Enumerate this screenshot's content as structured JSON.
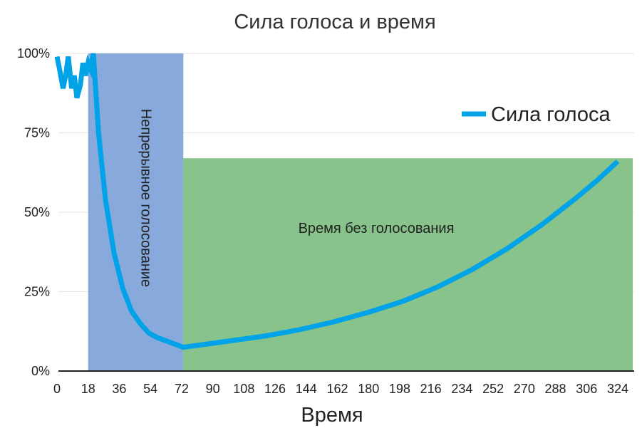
{
  "chart_data": {
    "type": "line",
    "title": "Сила голоса и время",
    "xlabel": "Время",
    "ylabel": "",
    "xlim": [
      0,
      324
    ],
    "ylim": [
      0,
      100
    ],
    "grid": true,
    "legend_position": "top-right",
    "x_ticks": [
      "0",
      "18",
      "36",
      "54",
      "72",
      "90",
      "108",
      "126",
      "144",
      "162",
      "180",
      "198",
      "216",
      "234",
      "252",
      "270",
      "288",
      "306",
      "324"
    ],
    "y_ticks": [
      "0%",
      "25%",
      "50%",
      "75%",
      "100%"
    ],
    "regions": [
      {
        "label": "Непрерывное голосование",
        "x_start": 18,
        "x_end": 73,
        "y_top": 100,
        "color": "#87a9dc"
      },
      {
        "label": "Время без голосования",
        "x_start": 73,
        "x_end": 324,
        "y_top": 67,
        "color": "#87c38a"
      }
    ],
    "series": [
      {
        "name": "Сила голоса",
        "color": "#00a2e8",
        "points": [
          [
            0,
            99
          ],
          [
            1.5,
            95
          ],
          [
            3.5,
            89
          ],
          [
            5,
            93
          ],
          [
            6.5,
            99
          ],
          [
            8.5,
            89
          ],
          [
            10,
            93
          ],
          [
            11.5,
            86
          ],
          [
            13.5,
            90
          ],
          [
            15,
            97
          ],
          [
            16.5,
            93
          ],
          [
            18,
            97
          ],
          [
            19.5,
            95
          ],
          [
            21,
            100
          ],
          [
            24,
            75
          ],
          [
            28,
            54
          ],
          [
            33,
            37
          ],
          [
            38,
            26
          ],
          [
            43,
            19
          ],
          [
            48,
            15
          ],
          [
            53,
            12
          ],
          [
            58,
            10.5
          ],
          [
            63,
            9.5
          ],
          [
            68,
            8.5
          ],
          [
            73,
            7.5
          ],
          [
            83,
            8.2
          ],
          [
            100,
            9.5
          ],
          [
            120,
            11
          ],
          [
            140,
            13
          ],
          [
            160,
            15.5
          ],
          [
            180,
            18.5
          ],
          [
            200,
            22
          ],
          [
            220,
            26.5
          ],
          [
            240,
            32
          ],
          [
            260,
            38.5
          ],
          [
            280,
            46
          ],
          [
            300,
            54.5
          ],
          [
            312,
            60
          ],
          [
            324,
            66
          ]
        ]
      }
    ]
  }
}
